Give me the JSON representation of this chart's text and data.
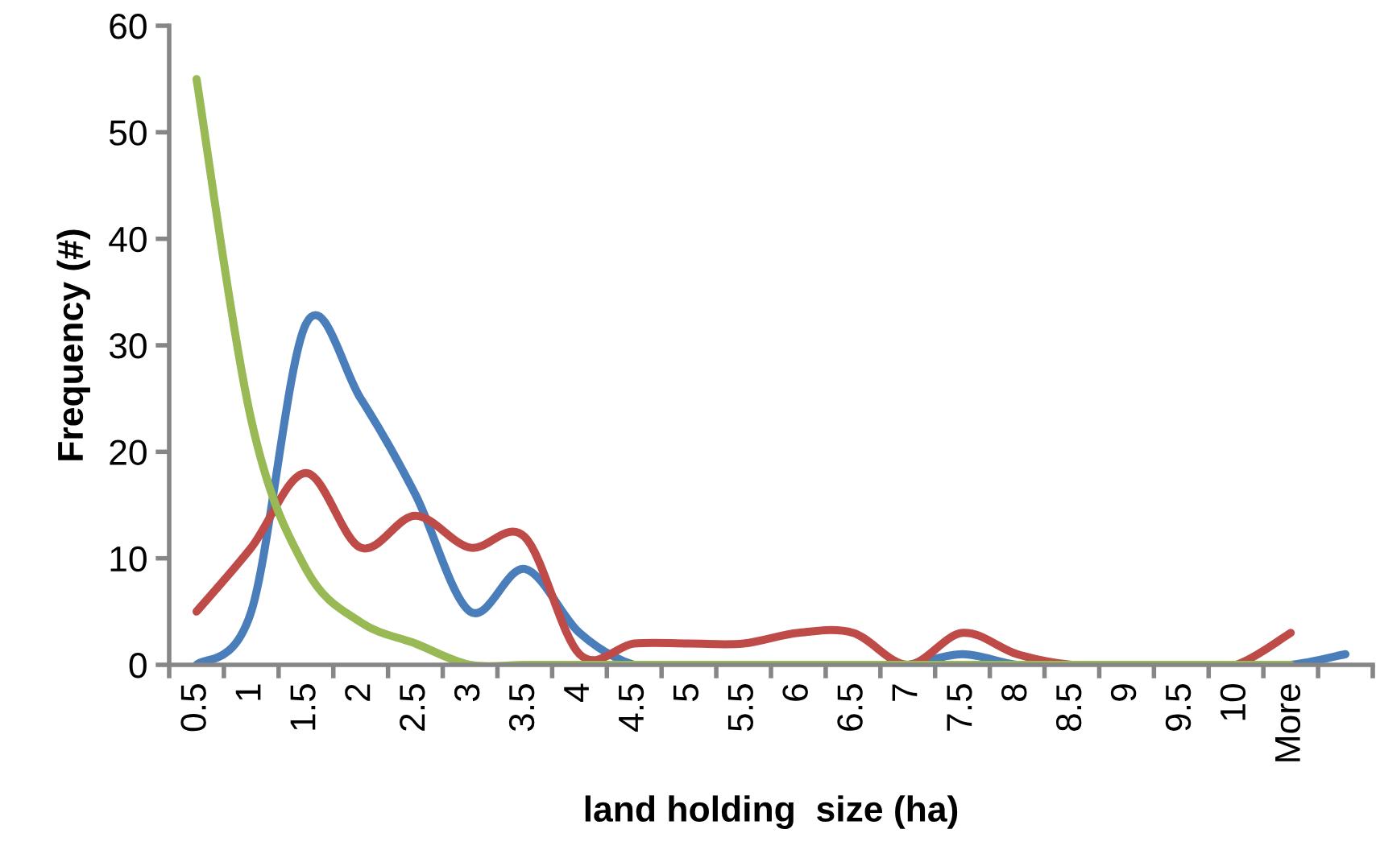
{
  "chart_data": {
    "type": "line",
    "xlabel": "land holding  size (ha)",
    "ylabel": "Frequency (#)",
    "categories": [
      "0.5",
      "1",
      "1.5",
      "2",
      "2.5",
      "3",
      "3.5",
      "4",
      "4.5",
      "5",
      "5.5",
      "6",
      "6.5",
      "7",
      "7.5",
      "8",
      "8.5",
      "9",
      "9.5",
      "10",
      "More",
      null
    ],
    "series": [
      {
        "color": "#4a7ebb",
        "values": [
          0,
          5,
          32,
          25,
          16,
          5,
          9,
          3,
          0,
          0,
          0,
          0,
          0,
          0,
          1,
          0,
          0,
          0,
          0,
          0,
          0,
          1
        ]
      },
      {
        "color": "#be4b48",
        "values": [
          5,
          11,
          18,
          11,
          14,
          11,
          12,
          1,
          2,
          2,
          2,
          3,
          3,
          0,
          3,
          1,
          0,
          0,
          0,
          0,
          3,
          null
        ]
      },
      {
        "color": "#98b954",
        "values": [
          55,
          23,
          9,
          4,
          2,
          0,
          0,
          0,
          0,
          0,
          0,
          0,
          0,
          0,
          0,
          0,
          0,
          0,
          0,
          0,
          0,
          null
        ]
      }
    ],
    "ylim": [
      0,
      60
    ],
    "yticks": [
      0,
      10,
      20,
      30,
      40,
      50,
      60
    ],
    "grid": false,
    "marker": "none",
    "line_style": "solid"
  }
}
